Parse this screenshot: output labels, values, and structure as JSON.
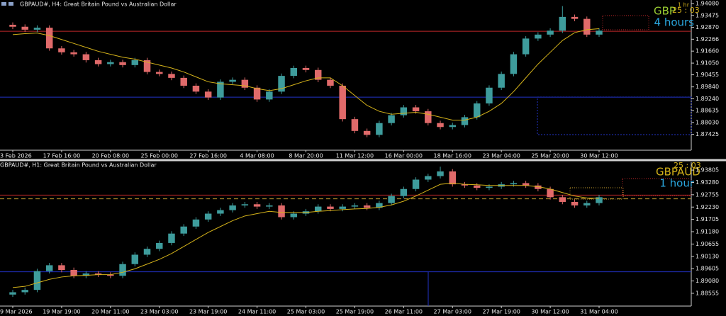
{
  "chart_data": [
    {
      "type": "candlestick",
      "title": "GBPAUD#, H4:  Great Britain Pound vs Australian Dollar",
      "overlay": {
        "timeframe": "1 hr",
        "countdown": "25 : 03",
        "symbol": "GBP",
        "period": "4 hours"
      },
      "up_color": "#3e9c9c",
      "down_color": "#e06a6a",
      "ma_color": "#d4b21a",
      "categories": [
        "3 Feb 2026",
        null,
        null,
        null,
        "17 Feb 16:00",
        null,
        null,
        null,
        "20 Feb 08:00",
        null,
        null,
        null,
        "25 Feb 00:00",
        null,
        null,
        null,
        "27 Feb 16:00",
        null,
        null,
        null,
        "4 Mar 08:00",
        null,
        null,
        null,
        "8 Mar 20:00",
        null,
        null,
        null,
        "11 Mar 12:00",
        null,
        null,
        null,
        "16 Mar 00:00",
        null,
        null,
        null,
        "18 Mar 16:00",
        null,
        null,
        null,
        "23 Mar 04:00",
        null,
        null,
        null,
        "25 Mar 20:00",
        null,
        null,
        null,
        "30 Mar 12:00"
      ],
      "open": [
        1.93,
        1.929,
        1.9275,
        1.9285,
        1.918,
        1.916,
        1.915,
        1.912,
        1.91,
        1.911,
        1.9095,
        1.912,
        1.906,
        1.905,
        1.903,
        1.899,
        1.896,
        1.893,
        1.901,
        1.902,
        1.898,
        1.892,
        1.896,
        1.904,
        1.908,
        1.907,
        1.902,
        1.899,
        1.882,
        1.876,
        1.874,
        1.88,
        1.884,
        1.888,
        1.886,
        1.88,
        1.878,
        1.879,
        1.883,
        1.89,
        1.898,
        1.905,
        1.915,
        1.923,
        1.925,
        1.927,
        1.934,
        1.933,
        1.925
      ],
      "high": [
        1.9312,
        1.9302,
        1.9297,
        1.9297,
        1.9192,
        1.9172,
        1.9162,
        1.9132,
        1.9122,
        1.9122,
        1.9132,
        1.9132,
        1.9072,
        1.9062,
        1.9042,
        1.9002,
        1.8972,
        1.9022,
        1.9032,
        1.9032,
        1.8992,
        1.8972,
        1.9052,
        1.9092,
        1.9092,
        1.9082,
        1.9032,
        1.9002,
        1.8832,
        1.8772,
        1.8812,
        1.8852,
        1.8892,
        1.8892,
        1.8872,
        1.8812,
        1.8802,
        1.8842,
        1.8912,
        1.8992,
        1.9062,
        1.9162,
        1.9242,
        1.9262,
        1.9282,
        1.9395,
        1.9352,
        1.9342,
        1.9282
      ],
      "low": [
        1.9278,
        1.9263,
        1.9263,
        1.9168,
        1.9148,
        1.9138,
        1.9108,
        1.9088,
        1.9088,
        1.9083,
        1.9083,
        1.9048,
        1.9038,
        1.9018,
        1.8978,
        1.8948,
        1.8918,
        1.8918,
        1.8998,
        1.8968,
        1.8908,
        1.8908,
        1.8948,
        1.9028,
        1.9058,
        1.9008,
        1.8978,
        1.8808,
        1.8748,
        1.8728,
        1.8728,
        1.8788,
        1.8828,
        1.8848,
        1.8788,
        1.8768,
        1.8768,
        1.8778,
        1.8818,
        1.8888,
        1.8968,
        1.9038,
        1.9138,
        1.9218,
        1.9238,
        1.9258,
        1.9318,
        1.9238,
        1.9238
      ],
      "close": [
        1.929,
        1.9275,
        1.9285,
        1.918,
        1.916,
        1.915,
        1.912,
        1.91,
        1.911,
        1.9095,
        1.912,
        1.906,
        1.905,
        1.903,
        1.899,
        1.896,
        1.893,
        1.901,
        1.902,
        1.898,
        1.892,
        1.896,
        1.904,
        1.908,
        1.907,
        1.902,
        1.899,
        1.882,
        1.876,
        1.874,
        1.88,
        1.884,
        1.888,
        1.886,
        1.88,
        1.878,
        1.879,
        1.883,
        1.89,
        1.898,
        1.905,
        1.915,
        1.923,
        1.925,
        1.927,
        1.934,
        1.933,
        1.925,
        1.927
      ],
      "ma": [
        1.925,
        1.9255,
        1.9258,
        1.9245,
        1.9225,
        1.9205,
        1.9185,
        1.9165,
        1.915,
        1.9135,
        1.9125,
        1.911,
        1.9095,
        1.908,
        1.906,
        1.9035,
        1.901,
        1.9,
        1.8995,
        1.899,
        1.8975,
        1.8965,
        1.8975,
        1.8995,
        1.9015,
        1.903,
        1.903,
        1.899,
        1.894,
        1.889,
        1.886,
        1.8845,
        1.885,
        1.8855,
        1.8845,
        1.883,
        1.8815,
        1.8815,
        1.883,
        1.886,
        1.89,
        1.896,
        1.903,
        1.91,
        1.916,
        1.922,
        1.926,
        1.9275,
        1.928
      ],
      "levels": [
        {
          "value": 1.9267,
          "color": "#c0282a",
          "dash": false
        },
        {
          "value": 1.8932,
          "color": "#2233c8",
          "dash": false
        }
      ],
      "ylim": [
        1.8662,
        1.9426
      ],
      "yticks": [
        {
          "value": 1.9408,
          "label": "1.94080"
        },
        1.93475,
        {
          "value": 1.9287,
          "label": "1.92870"
        },
        1.92266,
        {
          "value": 1.9166,
          "label": "1.91660"
        },
        {
          "value": 1.9105,
          "label": "1.91050"
        },
        1.90455,
        {
          "value": 1.8984,
          "label": "1.89840"
        },
        {
          "value": 1.8924,
          "label": "1.89240"
        },
        1.88635,
        {
          "value": 1.8803,
          "label": "1.88030"
        },
        1.87425
      ]
    },
    {
      "type": "candlestick",
      "title": "GBPAUD#, H1:  Great Britain Pound vs Australian Dollar",
      "overlay": {
        "countdown": "25 : 03",
        "symbol": "GBPAUD",
        "period": "1 hour"
      },
      "up_color": "#3e9c9c",
      "down_color": "#e06a6a",
      "ma_color": "#d4b21a",
      "categories": [
        "9 Mar 2026",
        null,
        null,
        null,
        "19 Mar 19:00",
        null,
        null,
        null,
        "20 Mar 11:00",
        null,
        null,
        null,
        "23 Mar 03:00",
        null,
        null,
        null,
        "23 Mar 19:00",
        null,
        null,
        null,
        "24 Mar 11:00",
        null,
        null,
        null,
        "25 Mar 03:00",
        null,
        null,
        null,
        "25 Mar 19:00",
        null,
        null,
        null,
        "26 Mar 11:00",
        null,
        null,
        null,
        "27 Mar 03:00",
        null,
        null,
        null,
        "27 Mar 19:00",
        null,
        null,
        null,
        "30 Mar 12:00",
        null,
        null,
        null,
        "31 Mar 04:00"
      ],
      "open": [
        1.885,
        1.886,
        1.887,
        1.895,
        1.8975,
        1.8955,
        1.893,
        1.894,
        1.8935,
        1.893,
        1.898,
        1.902,
        1.9045,
        1.907,
        1.911,
        1.914,
        1.917,
        1.9195,
        1.921,
        1.923,
        1.9235,
        1.9225,
        1.923,
        1.918,
        1.9195,
        1.9205,
        1.9225,
        1.9215,
        1.9225,
        1.923,
        1.922,
        1.924,
        1.927,
        1.93,
        1.934,
        1.9355,
        1.9375,
        1.932,
        1.9315,
        1.9305,
        1.931,
        1.932,
        1.9325,
        1.9315,
        1.93,
        1.9265,
        1.9245,
        1.923,
        1.924
      ],
      "high": [
        1.887,
        1.888,
        1.896,
        1.8985,
        1.8985,
        1.8965,
        1.895,
        1.895,
        1.8945,
        1.899,
        1.903,
        1.9055,
        1.908,
        1.912,
        1.915,
        1.918,
        1.9205,
        1.922,
        1.924,
        1.9245,
        1.9245,
        1.924,
        1.924,
        1.9205,
        1.9215,
        1.9235,
        1.9235,
        1.9235,
        1.924,
        1.924,
        1.925,
        1.928,
        1.931,
        1.935,
        1.9365,
        1.9395,
        1.9385,
        1.933,
        1.9325,
        1.932,
        1.933,
        1.9335,
        1.9335,
        1.9325,
        1.931,
        1.9275,
        1.9255,
        1.925,
        1.9275
      ],
      "low": [
        1.884,
        1.885,
        1.886,
        1.894,
        1.8945,
        1.892,
        1.892,
        1.8925,
        1.892,
        1.892,
        1.897,
        1.901,
        1.9035,
        1.906,
        1.91,
        1.913,
        1.916,
        1.9185,
        1.92,
        1.922,
        1.9215,
        1.9215,
        1.917,
        1.917,
        1.9185,
        1.9195,
        1.9205,
        1.9205,
        1.9215,
        1.921,
        1.921,
        1.923,
        1.926,
        1.929,
        1.933,
        1.9345,
        1.931,
        1.9305,
        1.9295,
        1.9295,
        1.93,
        1.931,
        1.9305,
        1.929,
        1.9255,
        1.9235,
        1.922,
        1.922,
        1.923
      ],
      "close": [
        1.886,
        1.887,
        1.895,
        1.8975,
        1.8955,
        1.893,
        1.894,
        1.8935,
        1.893,
        1.898,
        1.902,
        1.9045,
        1.907,
        1.911,
        1.914,
        1.917,
        1.9195,
        1.921,
        1.923,
        1.9235,
        1.9225,
        1.923,
        1.918,
        1.9195,
        1.9205,
        1.9225,
        1.9215,
        1.9225,
        1.923,
        1.922,
        1.924,
        1.927,
        1.93,
        1.934,
        1.9355,
        1.9375,
        1.932,
        1.9315,
        1.9305,
        1.931,
        1.932,
        1.9325,
        1.9315,
        1.93,
        1.9265,
        1.9245,
        1.923,
        1.924,
        1.9265
      ],
      "ma": [
        1.888,
        1.8885,
        1.89,
        1.8915,
        1.8925,
        1.893,
        1.8932,
        1.8935,
        1.8935,
        1.8945,
        1.896,
        1.898,
        1.9,
        1.9025,
        1.9055,
        1.9085,
        1.9115,
        1.914,
        1.9165,
        1.9185,
        1.9195,
        1.9205,
        1.92,
        1.92,
        1.92,
        1.9205,
        1.9208,
        1.9212,
        1.9215,
        1.9217,
        1.9222,
        1.9232,
        1.9248,
        1.927,
        1.9295,
        1.932,
        1.9325,
        1.932,
        1.9318,
        1.9315,
        1.9315,
        1.9315,
        1.9315,
        1.931,
        1.93,
        1.9285,
        1.927,
        1.9262,
        1.926
      ],
      "levels": [
        {
          "value": 1.9274,
          "color": "#c0282a",
          "dash": false
        },
        {
          "value": 1.9258,
          "color": "#c8a030",
          "dash": true
        },
        {
          "value": 1.8947,
          "color": "#2233c8",
          "dash": false
        }
      ],
      "ylim": [
        1.8801,
        1.9414
      ],
      "yticks": [
        1.93805,
        {
          "value": 1.9328,
          "label": "1.93280"
        },
        1.92755,
        {
          "value": 1.9223,
          "label": "1.92230"
        },
        1.91705,
        {
          "value": 1.9118,
          "label": "1.91180"
        },
        1.90655,
        {
          "value": 1.9013,
          "label": "1.90130"
        },
        1.89605,
        {
          "value": 1.8908,
          "label": "1.89080"
        },
        1.88555
      ]
    }
  ]
}
